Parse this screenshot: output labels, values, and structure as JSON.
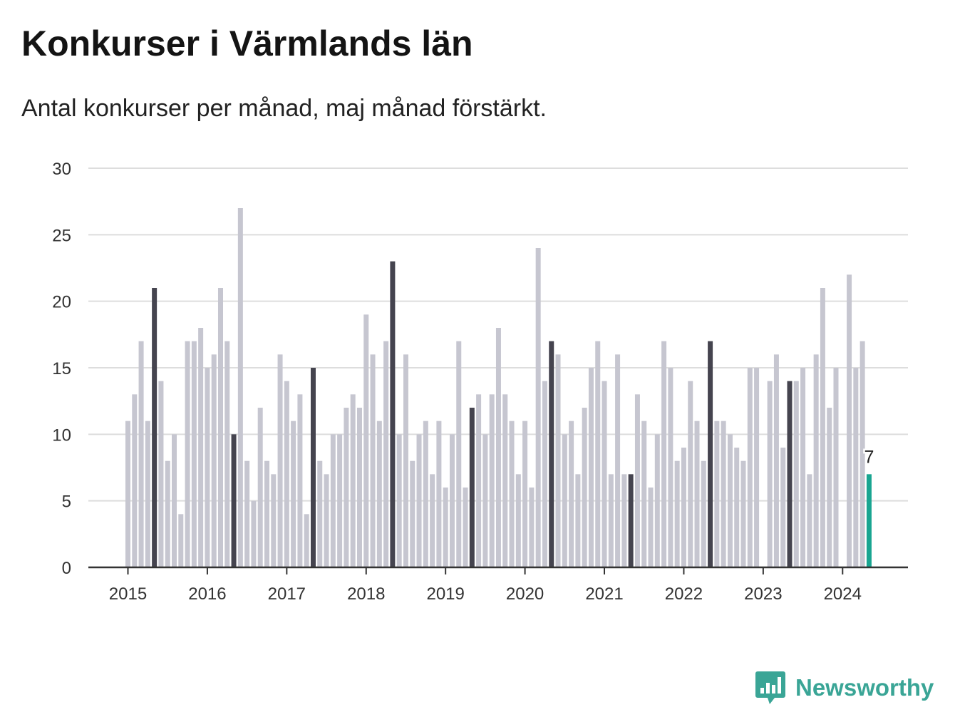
{
  "header": {
    "title": "Konkurser i Värmlands län",
    "subtitle": "Antal konkurser per månad, maj månad förstärkt."
  },
  "brand": {
    "name": "Newsworthy",
    "icon": "newsworthy-logo-icon",
    "color": "#3aa596"
  },
  "colors": {
    "bar_default": "#c6c6d0",
    "bar_may": "#45444f",
    "bar_latest": "#19a591",
    "grid": "#dddddd",
    "axis": "#333333"
  },
  "chart_data": {
    "type": "bar",
    "title": "Konkurser i Värmlands län",
    "subtitle": "Antal konkurser per månad, maj månad förstärkt.",
    "xlabel": "",
    "ylabel": "",
    "ylim": [
      0,
      30
    ],
    "yticks": [
      0,
      5,
      10,
      15,
      20,
      25,
      30
    ],
    "grid": true,
    "legend": "none",
    "x_tick_labels": [
      "2015",
      "2016",
      "2017",
      "2018",
      "2019",
      "2020",
      "2021",
      "2022",
      "2023",
      "2024"
    ],
    "highlight": "maj",
    "latest_label": "7",
    "series": [
      {
        "year": "2015",
        "values": [
          11,
          13,
          17,
          11,
          21,
          14,
          8,
          10,
          4,
          17,
          17,
          18
        ]
      },
      {
        "year": "2016",
        "values": [
          15,
          16,
          21,
          17,
          10,
          27,
          8,
          5,
          12,
          8,
          7,
          16
        ]
      },
      {
        "year": "2017",
        "values": [
          14,
          11,
          13,
          4,
          15,
          8,
          7,
          10,
          10,
          12,
          13,
          12
        ]
      },
      {
        "year": "2018",
        "values": [
          19,
          16,
          11,
          17,
          23,
          10,
          16,
          8,
          10,
          11,
          7,
          11
        ]
      },
      {
        "year": "2019",
        "values": [
          6,
          10,
          17,
          6,
          12,
          13,
          10,
          13,
          18,
          13,
          11,
          7
        ]
      },
      {
        "year": "2020",
        "values": [
          11,
          6,
          24,
          14,
          17,
          16,
          10,
          11,
          7,
          12,
          15,
          17
        ]
      },
      {
        "year": "2021",
        "values": [
          14,
          7,
          16,
          7,
          7,
          13,
          11,
          6,
          10,
          17,
          15,
          8
        ]
      },
      {
        "year": "2022",
        "values": [
          9,
          14,
          11,
          8,
          17,
          11,
          11,
          10,
          9,
          8,
          15,
          15
        ]
      },
      {
        "year": "2023",
        "values": [
          0,
          14,
          16,
          9,
          14,
          14,
          15,
          7,
          16,
          21,
          12,
          15
        ]
      },
      {
        "year": "2024",
        "values": [
          0,
          22,
          15,
          17,
          7
        ]
      }
    ]
  }
}
